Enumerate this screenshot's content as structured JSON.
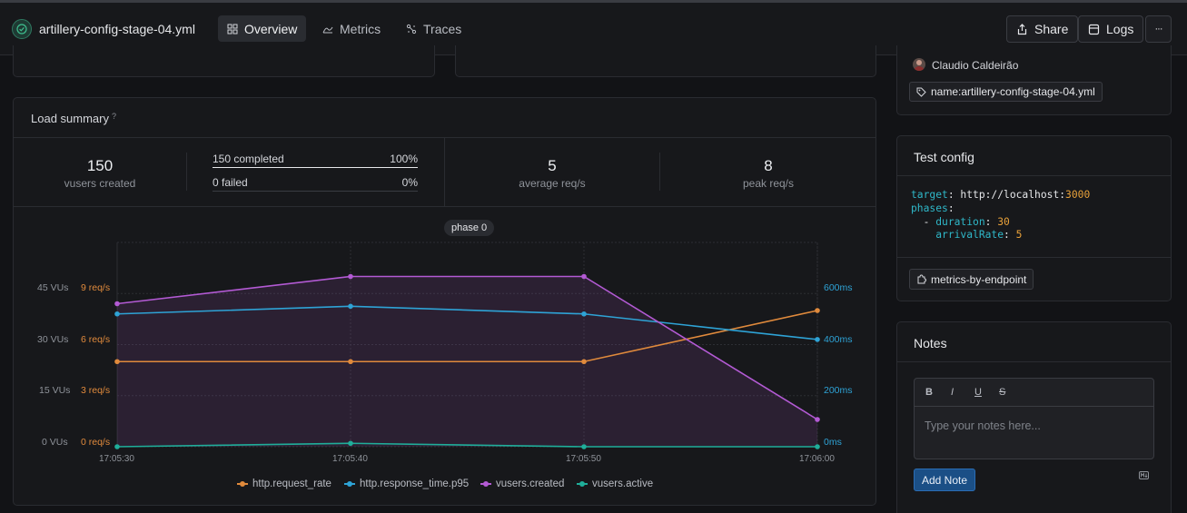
{
  "header": {
    "title": "artillery-config-stage-04.yml",
    "tabs": [
      {
        "label": "Overview",
        "icon": "grid-icon",
        "active": true
      },
      {
        "label": "Metrics",
        "icon": "chart-icon",
        "active": false
      },
      {
        "label": "Traces",
        "icon": "traces-icon",
        "active": false
      }
    ],
    "share_label": "Share",
    "logs_label": "Logs",
    "more_label": "···"
  },
  "load_summary": {
    "title": "Load summary",
    "help_icon": "?",
    "vusers_created_value": "150",
    "vusers_created_label": "vusers created",
    "completed_label": "150 completed",
    "completed_pct": "100%",
    "completed_fraction": 1.0,
    "failed_label": "0 failed",
    "failed_pct": "0%",
    "failed_fraction": 0.0,
    "avg_req_value": "5",
    "avg_req_label": "average req/s",
    "peak_req_value": "8",
    "peak_req_label": "peak req/s"
  },
  "chart_data": {
    "type": "line",
    "phase_label": "phase 0",
    "x": [
      "17:05:30",
      "17:05:40",
      "17:05:50",
      "17:06:00"
    ],
    "left_axis_vus": {
      "ticks": [
        "0 VUs",
        "15 VUs",
        "30 VUs",
        "45 VUs"
      ],
      "values": [
        0,
        15,
        30,
        45
      ],
      "ylim": [
        0,
        60
      ]
    },
    "left_axis_req": {
      "ticks": [
        "0 req/s",
        "3 req/s",
        "6 req/s",
        "9 req/s"
      ],
      "values": [
        0,
        3,
        6,
        9
      ],
      "ylim": [
        0,
        12
      ]
    },
    "right_axis_ms": {
      "ticks": [
        "0ms",
        "200ms",
        "400ms",
        "600ms"
      ],
      "values": [
        0,
        200,
        400,
        600
      ],
      "ylim": [
        0,
        800
      ]
    },
    "series": [
      {
        "name": "http.request_rate",
        "axis": "req",
        "color": "#e08a3c",
        "values": [
          5,
          5,
          5,
          8
        ]
      },
      {
        "name": "http.response_time.p95",
        "axis": "ms",
        "color": "#2ea3d6",
        "values": [
          520,
          550,
          520,
          420
        ]
      },
      {
        "name": "vusers.created",
        "axis": "vus",
        "color": "#b35ad4",
        "values": [
          42,
          50,
          50,
          8
        ],
        "fill": true
      },
      {
        "name": "vusers.active",
        "axis": "vus",
        "color": "#1fae9a",
        "values": [
          0,
          1,
          0,
          0
        ]
      }
    ]
  },
  "info_panel": {
    "author": "Claudio Caldeirão",
    "tag": "name:artillery-config-stage-04.yml"
  },
  "test_config": {
    "title": "Test config",
    "lines": [
      {
        "key": "target",
        "sep": ": ",
        "value": "http://localhost:",
        "num": "3000",
        "indent": ""
      },
      {
        "key": "phases",
        "sep": ":",
        "value": "",
        "num": "",
        "indent": ""
      },
      {
        "key": "duration",
        "sep": ": ",
        "value": "",
        "num": "30",
        "indent": "  - "
      },
      {
        "key": "arrivalRate",
        "sep": ": ",
        "value": "",
        "num": "5",
        "indent": "    "
      }
    ],
    "plugin_chip": "metrics-by-endpoint"
  },
  "notes": {
    "title": "Notes",
    "bold": "B",
    "italic": "I",
    "underline": "U",
    "strike": "S",
    "placeholder": "Type your notes here...",
    "add_button": "Add Note"
  }
}
